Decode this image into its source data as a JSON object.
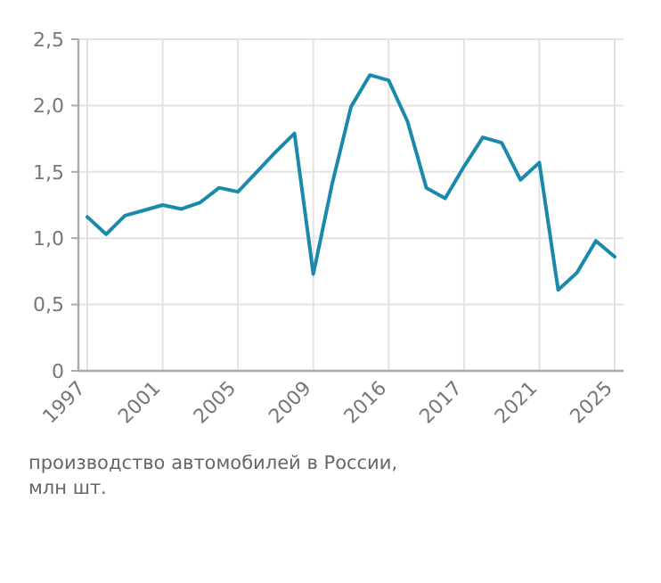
{
  "chart_data": {
    "type": "line",
    "categories": [
      "1997",
      null,
      null,
      null,
      "2001",
      null,
      null,
      null,
      "2005",
      null,
      null,
      null,
      "2009",
      null,
      null,
      null,
      "2016",
      null,
      null,
      null,
      "2017",
      null,
      null,
      null,
      "2021",
      null,
      null,
      null,
      "2025"
    ],
    "series": [
      {
        "color": "#1a8aaa",
        "values": [
          1.16,
          1.03,
          1.17,
          1.21,
          1.25,
          1.22,
          1.27,
          1.38,
          1.35,
          1.5,
          1.65,
          1.79,
          0.73,
          1.41,
          1.99,
          2.23,
          2.19,
          1.88,
          1.38,
          1.3,
          1.54,
          1.76,
          1.72,
          1.44,
          1.57,
          0.61,
          0.74,
          0.98,
          0.86
        ]
      }
    ],
    "ylim": [
      0,
      2.5
    ],
    "yticks": [
      0,
      {
        "value": 0.5,
        "label": "0,5"
      },
      {
        "value": 1,
        "label": "1,0"
      },
      {
        "value": 1.5,
        "label": "1,5"
      },
      {
        "value": 2,
        "label": "2,0"
      },
      {
        "value": 2.5,
        "label": "2,5"
      }
    ],
    "grid": true,
    "marker": "none",
    "line_style": "solid",
    "annotations": [
      "производство автомобилей в России,\nмлн шт."
    ]
  }
}
